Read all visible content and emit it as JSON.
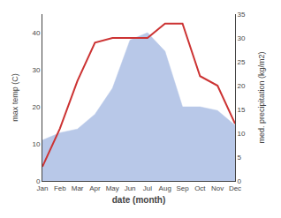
{
  "chart_data": {
    "type": "area",
    "categories": [
      "Jan",
      "Feb",
      "Mar",
      "Apr",
      "May",
      "Jun",
      "Jul",
      "Aug",
      "Sep",
      "Oct",
      "Nov",
      "Dec"
    ],
    "series": [
      {
        "type": "area",
        "color": "#b8c8e8",
        "values": [
          11,
          13,
          14,
          18,
          25,
          38,
          40,
          35,
          20,
          20,
          19,
          15
        ]
      },
      {
        "type": "line",
        "color": "#cc3333",
        "axis": "y2",
        "values": [
          3,
          11,
          21,
          29,
          30,
          30,
          30,
          33,
          33,
          22,
          20,
          12
        ]
      }
    ],
    "xlabel": "date (month)",
    "ylabel": "max temp (C)",
    "y2label": "med. precipitation (kg/m2)",
    "ylim": [
      0,
      45
    ],
    "yticks": [
      0,
      10,
      20,
      30,
      40
    ],
    "y2lim": [
      0,
      35
    ],
    "y2ticks": [
      0,
      5,
      10,
      15,
      20,
      25,
      30,
      35
    ],
    "grid": false
  }
}
